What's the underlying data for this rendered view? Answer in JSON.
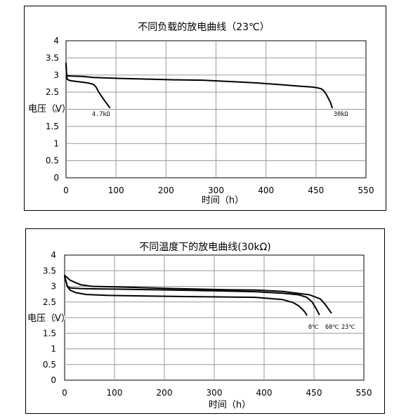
{
  "chart_data": [
    {
      "type": "line",
      "title": "不同负载的放电曲线（23℃）",
      "xlabel": "时间（h）",
      "ylabel": "电压（V）",
      "xlim": [
        0,
        550
      ],
      "ylim": [
        0,
        4
      ],
      "x_ticks": [
        "0",
        "100",
        "200",
        "300",
        "400",
        "450",
        "550"
      ],
      "y_ticks": [
        "0",
        "0.5",
        "1",
        "1.5",
        "2",
        "2.5",
        "3",
        "3.5",
        "4"
      ],
      "grid": true,
      "series": [
        {
          "name": "4.7kΩ",
          "x": [
            0,
            1,
            2,
            5,
            10,
            20,
            30,
            40,
            50,
            55,
            60,
            65,
            70,
            75,
            80
          ],
          "y": [
            3.3,
            3.0,
            2.88,
            2.85,
            2.83,
            2.81,
            2.79,
            2.77,
            2.73,
            2.65,
            2.5,
            2.38,
            2.27,
            2.16,
            2.05
          ]
        },
        {
          "name": "30kΩ",
          "x": [
            0,
            1,
            3,
            10,
            30,
            50,
            100,
            150,
            200,
            250,
            300,
            350,
            400,
            430,
            450,
            460,
            468,
            472,
            476,
            480,
            485,
            488
          ],
          "y": [
            3.35,
            3.0,
            2.98,
            2.97,
            2.96,
            2.93,
            2.9,
            2.88,
            2.86,
            2.85,
            2.81,
            2.77,
            2.71,
            2.67,
            2.65,
            2.63,
            2.6,
            2.55,
            2.47,
            2.35,
            2.2,
            2.05
          ]
        }
      ],
      "annotations": [
        "4.7kΩ",
        "30kΩ"
      ]
    },
    {
      "type": "line",
      "title": "不同温度下的放电曲线(30kΩ)",
      "xlabel": "时间（h）",
      "ylabel": "电压（V）",
      "xlim": [
        0,
        550
      ],
      "ylim": [
        0,
        4
      ],
      "x_ticks": [
        "0",
        "100",
        "200",
        "300",
        "400",
        "450",
        "550"
      ],
      "y_ticks": [
        "0",
        "0.5",
        "1",
        "1.5",
        "2",
        "2.5",
        "3",
        "3.5",
        "4"
      ],
      "grid": true,
      "series": [
        {
          "name": "0℃",
          "x": [
            0,
            5,
            10,
            20,
            40,
            80,
            150,
            250,
            350,
            400,
            420,
            430,
            437,
            442,
            445
          ],
          "y": [
            3.32,
            3.0,
            2.88,
            2.8,
            2.74,
            2.71,
            2.69,
            2.67,
            2.65,
            2.58,
            2.48,
            2.38,
            2.27,
            2.17,
            2.08
          ]
        },
        {
          "name": "60℃",
          "x": [
            0,
            5,
            10,
            30,
            60,
            100,
            200,
            300,
            350,
            400,
            430,
            445,
            455,
            462,
            468
          ],
          "y": [
            3.32,
            3.0,
            2.95,
            2.93,
            2.92,
            2.91,
            2.88,
            2.85,
            2.83,
            2.78,
            2.73,
            2.65,
            2.5,
            2.3,
            2.1
          ]
        },
        {
          "name": "23℃",
          "x": [
            0,
            10,
            20,
            30,
            50,
            100,
            200,
            300,
            350,
            400,
            450,
            470,
            480,
            490
          ],
          "y": [
            3.35,
            3.2,
            3.12,
            3.05,
            3.0,
            2.98,
            2.93,
            2.89,
            2.88,
            2.84,
            2.73,
            2.6,
            2.4,
            2.15
          ]
        }
      ],
      "annotations": [
        "0℃",
        "60℃",
        "23℃"
      ]
    }
  ]
}
